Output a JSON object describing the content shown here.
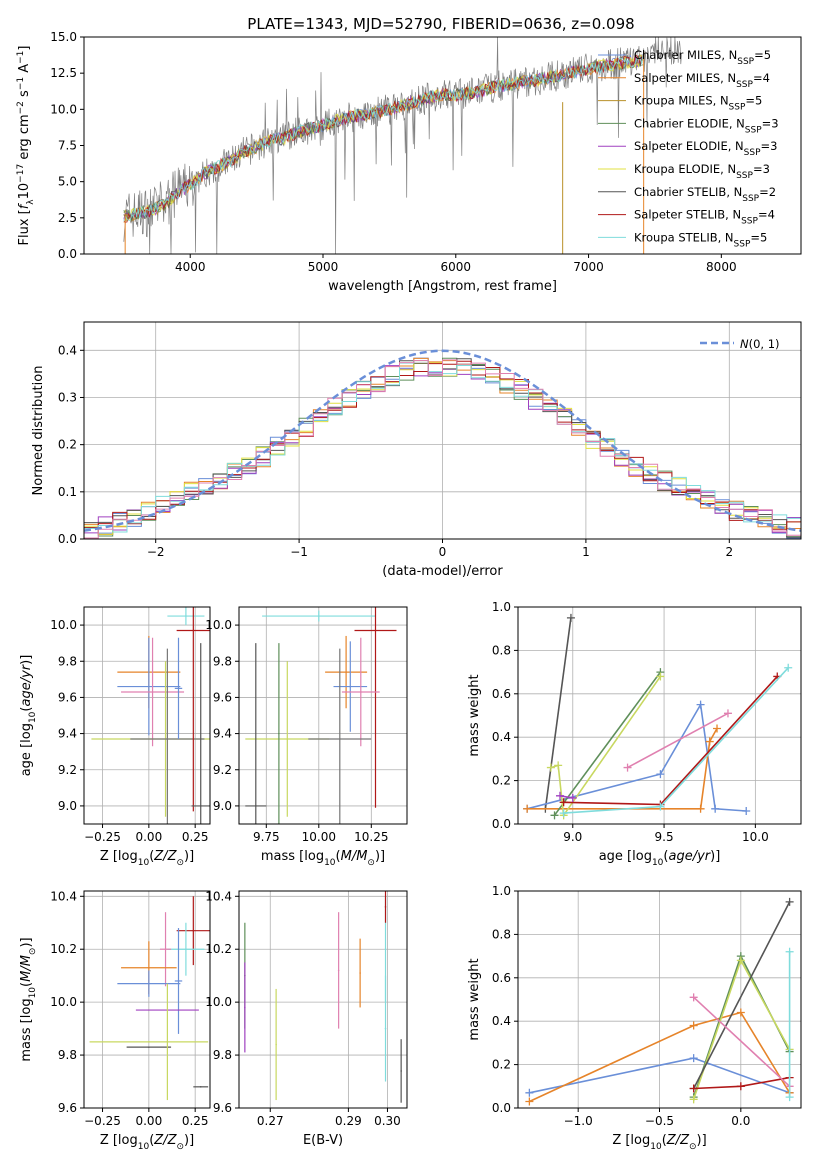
{
  "title": "PLATE=1343, MJD=52790, FIBERID=0636, z=0.098",
  "colors": {
    "miles_chabrier": "#6a8fd8",
    "miles_salpeter": "#e6842a",
    "miles_kroupa": "#b8902a",
    "elodie_chabrier": "#5f8f5a",
    "elodie_salpeter": "#a040c0",
    "elodie_kroupa": "#e0e040",
    "stelib_chabrier": "#555555",
    "stelib_salpeter": "#b01818",
    "stelib_kroupa": "#7fdcdc",
    "data": "#808080",
    "extra_pink": "#e080b0",
    "extra_olive": "#c8d860"
  },
  "chart_data": [
    {
      "id": "spectrum",
      "type": "line",
      "title": "PLATE=1343, MJD=52790, FIBERID=0636, z=0.098",
      "xlabel": "wavelength [Angstrom, rest frame]",
      "ylabel": "Flux [f_λ 10^-17 erg cm^-2 s^-1 A^-1]",
      "xlim": [
        3200,
        8600
      ],
      "ylim": [
        0,
        15
      ],
      "xticks": [
        4000,
        5000,
        6000,
        7000,
        8000
      ],
      "yticks": [
        0.0,
        2.5,
        5.0,
        7.5,
        10.0,
        12.5,
        15.0
      ],
      "legend_position": "top-right",
      "legend": [
        {
          "label": "Chabrier MILES, N_SSP=5",
          "color": "#6a8fd8"
        },
        {
          "label": "Salpeter MILES, N_SSP=4",
          "color": "#e6842a"
        },
        {
          "label": "Kroupa MILES, N_SSP=5",
          "color": "#b8902a"
        },
        {
          "label": "Chabrier ELODIE, N_SSP=3",
          "color": "#5f8f5a"
        },
        {
          "label": "Salpeter ELODIE, N_SSP=3",
          "color": "#a040c0"
        },
        {
          "label": "Kroupa ELODIE, N_SSP=3",
          "color": "#e0e040"
        },
        {
          "label": "Chabrier STELIB, N_SSP=2",
          "color": "#555555"
        },
        {
          "label": "Salpeter STELIB, N_SSP=4",
          "color": "#b01818"
        },
        {
          "label": "Kroupa STELIB, N_SSP=5",
          "color": "#7fdcdc"
        }
      ],
      "model_trend": [
        [
          3500,
          2.6
        ],
        [
          3600,
          2.8
        ],
        [
          3700,
          3.0
        ],
        [
          3800,
          3.4
        ],
        [
          3900,
          4.2
        ],
        [
          4000,
          4.8
        ],
        [
          4100,
          5.5
        ],
        [
          4200,
          6.0
        ],
        [
          4300,
          6.4
        ],
        [
          4400,
          7.0
        ],
        [
          4500,
          7.4
        ],
        [
          4600,
          7.8
        ],
        [
          4700,
          8.0
        ],
        [
          4800,
          8.4
        ],
        [
          4900,
          8.7
        ],
        [
          5000,
          8.9
        ],
        [
          5100,
          9.2
        ],
        [
          5200,
          9.5
        ],
        [
          5300,
          9.6
        ],
        [
          5400,
          9.8
        ],
        [
          5500,
          10.0
        ],
        [
          5600,
          10.3
        ],
        [
          5700,
          10.5
        ],
        [
          5800,
          10.8
        ],
        [
          5900,
          11.0
        ],
        [
          6000,
          11.0
        ],
        [
          6100,
          11.1
        ],
        [
          6200,
          11.3
        ],
        [
          6300,
          11.6
        ],
        [
          6400,
          11.7
        ],
        [
          6500,
          11.9
        ],
        [
          6600,
          12.0
        ],
        [
          6700,
          12.2
        ],
        [
          6800,
          12.4
        ],
        [
          6900,
          12.6
        ],
        [
          7000,
          12.8
        ],
        [
          7100,
          13.0
        ],
        [
          7200,
          13.1
        ],
        [
          7300,
          13.3
        ],
        [
          7400,
          13.4
        ],
        [
          7500,
          13.7
        ],
        [
          7600,
          14.0
        ],
        [
          7700,
          14.2
        ]
      ]
    },
    {
      "id": "residuals",
      "type": "line",
      "xlabel": "(data-model)/error",
      "ylabel": "Normed distribution",
      "xlim": [
        -2.5,
        2.5
      ],
      "ylim": [
        0,
        0.46
      ],
      "xticks": [
        -2,
        -1,
        0,
        1,
        2
      ],
      "yticks": [
        0.0,
        0.1,
        0.2,
        0.3,
        0.4
      ],
      "grid": true,
      "legend_position": "top-right",
      "legend": [
        {
          "label": "N(0,1)",
          "color": "#6a8fd8",
          "style": "dashed"
        }
      ],
      "normal_curve": {
        "mean": 0,
        "sigma": 1
      }
    },
    {
      "id": "age_vs_Z",
      "type": "scatter",
      "xlabel": "Z [log10(Z/Z⊙)]",
      "ylabel": "age [log10(age/yr)]",
      "xlim": [
        -0.35,
        0.33
      ],
      "ylim": [
        8.9,
        10.1
      ],
      "xticks": [
        "-0.25",
        "0.00",
        "0.25"
      ],
      "yticks": [
        "9.0",
        "9.2",
        "9.4",
        "9.6",
        "9.8",
        "10.0"
      ],
      "grid": true,
      "points": [
        {
          "x": 0.0,
          "y": 9.74,
          "xerr": 0.17,
          "yerr": 0.2,
          "color": "#e6842a"
        },
        {
          "x": 0.0,
          "y": 9.66,
          "xerr": 0.17,
          "yerr": 0.27,
          "color": "#6a8fd8"
        },
        {
          "x": 0.02,
          "y": 9.63,
          "xerr": 0.17,
          "yerr": 0.3,
          "color": "#e080b0"
        },
        {
          "x": 0.09,
          "y": 9.37,
          "xerr": 0.4,
          "yerr": 0.43,
          "color": "#c8d860"
        },
        {
          "x": 0.1,
          "y": 9.37,
          "xerr": 0.2,
          "yerr": 0.5,
          "color": "#777777"
        },
        {
          "x": 0.2,
          "y": 10.05,
          "xerr": 0.1,
          "yerr": 0.05,
          "color": "#7fdcdc"
        },
        {
          "x": 0.24,
          "y": 9.97,
          "xerr": 0.09,
          "yerr": 1.0,
          "color": "#b01818"
        },
        {
          "x": 0.16,
          "y": 9.65,
          "xerr": 0.02,
          "yerr": 0.28,
          "color": "#6a8fd8"
        },
        {
          "x": 0.28,
          "y": 9.0,
          "xerr": 0.05,
          "yerr": 0.9,
          "color": "#555555"
        }
      ]
    },
    {
      "id": "age_vs_mass",
      "type": "scatter",
      "xlabel": "mass [log10(M/M⊙)]",
      "ylabel": "",
      "xlim": [
        9.62,
        10.42
      ],
      "ylim": [
        8.9,
        10.1
      ],
      "xticks": [
        "9.75",
        "10.00",
        "10.25"
      ],
      "yticks": [
        "9.0",
        "9.2",
        "9.4",
        "9.6",
        "9.8",
        "10.0"
      ],
      "grid": true,
      "points": [
        {
          "x": 10.0,
          "y": 10.05,
          "xerr": 0.27,
          "yerr": 0.03,
          "color": "#7fdcdc"
        },
        {
          "x": 10.27,
          "y": 9.97,
          "xerr": 0.1,
          "yerr": 0.98,
          "color": "#b01818"
        },
        {
          "x": 10.13,
          "y": 9.74,
          "xerr": 0.1,
          "yerr": 0.2,
          "color": "#e6842a"
        },
        {
          "x": 10.15,
          "y": 9.66,
          "xerr": 0.08,
          "yerr": 0.25,
          "color": "#6a8fd8"
        },
        {
          "x": 10.2,
          "y": 9.63,
          "xerr": 0.09,
          "yerr": 0.3,
          "color": "#e080b0"
        },
        {
          "x": 9.85,
          "y": 9.37,
          "xerr": 0.2,
          "yerr": 0.43,
          "color": "#c8d860"
        },
        {
          "x": 10.1,
          "y": 9.37,
          "xerr": 0.15,
          "yerr": 0.5,
          "color": "#777777"
        },
        {
          "x": 9.7,
          "y": 9.0,
          "xerr": 0.05,
          "yerr": 0.9,
          "color": "#555555"
        },
        {
          "x": 9.81,
          "y": 9.4,
          "xerr": 0.0,
          "yerr": 0.5,
          "color": "#5f8f5a"
        }
      ]
    },
    {
      "id": "weight_vs_age",
      "type": "line",
      "xlabel": "age [log10(age/yr)]",
      "ylabel": "mass weight",
      "xlim": [
        8.7,
        10.25
      ],
      "ylim": [
        0,
        1
      ],
      "xticks": [
        "9.0",
        "9.5",
        "10.0"
      ],
      "yticks": [
        "0.0",
        "0.2",
        "0.4",
        "0.6",
        "0.8",
        "1.0"
      ],
      "grid": true,
      "series": [
        {
          "color": "#555555",
          "x": [
            8.85,
            8.99
          ],
          "y": [
            0.07,
            0.95
          ]
        },
        {
          "color": "#6a8fd8",
          "x": [
            8.75,
            9.48,
            9.7,
            9.78,
            9.95
          ],
          "y": [
            0.07,
            0.23,
            0.55,
            0.07,
            0.06
          ]
        },
        {
          "color": "#e6842a",
          "x": [
            8.75,
            9.7,
            9.75,
            9.79
          ],
          "y": [
            0.07,
            0.07,
            0.38,
            0.44
          ]
        },
        {
          "color": "#5f8f5a",
          "x": [
            8.9,
            9.48
          ],
          "y": [
            0.04,
            0.7
          ]
        },
        {
          "color": "#c8d860",
          "x": [
            8.88,
            8.92,
            8.95,
            9.48
          ],
          "y": [
            0.26,
            0.27,
            0.04,
            0.68
          ]
        },
        {
          "color": "#b01818",
          "x": [
            8.95,
            9.48,
            10.12
          ],
          "y": [
            0.1,
            0.09,
            0.68
          ]
        },
        {
          "color": "#7fdcdc",
          "x": [
            8.95,
            9.48,
            10.18
          ],
          "y": [
            0.05,
            0.08,
            0.72
          ]
        },
        {
          "color": "#e080b0",
          "x": [
            9.3,
            9.85
          ],
          "y": [
            0.26,
            0.51
          ]
        },
        {
          "color": "#a040c0",
          "x": [
            8.93,
            9.0
          ],
          "y": [
            0.13,
            0.12
          ]
        }
      ]
    },
    {
      "id": "mass_vs_Z",
      "type": "scatter",
      "xlabel": "Z [log10(Z/Z⊙)]",
      "ylabel": "mass [log10(M/M⊙)]",
      "xlim": [
        -0.35,
        0.33
      ],
      "ylim": [
        9.6,
        10.42
      ],
      "xticks": [
        "-0.25",
        "0.00",
        "0.25"
      ],
      "yticks": [
        "9.6",
        "9.8",
        "10.0",
        "10.2",
        "10.4"
      ],
      "grid": true,
      "points": [
        {
          "x": 0.24,
          "y": 10.27,
          "xerr": 0.09,
          "yerr": 0.13,
          "color": "#b01818"
        },
        {
          "x": 0.2,
          "y": 10.2,
          "xerr": 0.1,
          "yerr": 0.1,
          "color": "#7fdcdc"
        },
        {
          "x": 0.09,
          "y": 10.2,
          "xerr": 0.03,
          "yerr": 0.14,
          "color": "#e080b0"
        },
        {
          "x": 0.0,
          "y": 10.13,
          "xerr": 0.15,
          "yerr": 0.1,
          "color": "#e6842a"
        },
        {
          "x": 0.0,
          "y": 10.07,
          "xerr": 0.17,
          "yerr": 0.05,
          "color": "#6a8fd8"
        },
        {
          "x": 0.16,
          "y": 10.08,
          "xerr": 0.02,
          "yerr": 0.2,
          "color": "#6a8fd8"
        },
        {
          "x": 0.1,
          "y": 9.97,
          "xerr": 0.17,
          "yerr": 0.0,
          "color": "#a040c0"
        },
        {
          "x": 0.0,
          "y": 9.85,
          "xerr": 0.32,
          "yerr": 0.0,
          "color": "#c8d860"
        },
        {
          "x": 0.0,
          "y": 9.83,
          "xerr": 0.12,
          "yerr": 0.0,
          "color": "#555555"
        },
        {
          "x": 0.1,
          "y": 9.85,
          "xerr": 0.0,
          "yerr": 0.22,
          "color": "#c8d860"
        },
        {
          "x": 0.28,
          "y": 9.68,
          "xerr": 0.04,
          "yerr": 0.0,
          "color": "#555555"
        }
      ]
    },
    {
      "id": "mass_vs_EBV",
      "type": "scatter",
      "xlabel": "E(B-V)",
      "ylabel": "",
      "xlim": [
        0.262,
        0.305
      ],
      "ylim": [
        9.6,
        10.42
      ],
      "xticks": [
        "0.27",
        "0.29",
        "0.30"
      ],
      "yticks": [
        "9.6",
        "9.8",
        "10.0",
        "10.2",
        "10.4"
      ],
      "grid": true,
      "points": [
        {
          "x": 0.2635,
          "y": 10.1,
          "yerr": 0.2,
          "color": "#5f8f5a"
        },
        {
          "x": 0.2635,
          "y": 9.98,
          "yerr": 0.17,
          "color": "#a040c0"
        },
        {
          "x": 0.2715,
          "y": 9.84,
          "yerr": 0.21,
          "color": "#c8d860"
        },
        {
          "x": 0.2875,
          "y": 10.12,
          "yerr": 0.22,
          "color": "#e080b0"
        },
        {
          "x": 0.293,
          "y": 10.11,
          "yerr": 0.13,
          "color": "#e6842a"
        },
        {
          "x": 0.2995,
          "y": 10.2,
          "yerr": 0.2,
          "color": "#7fdcdc"
        },
        {
          "x": 0.2995,
          "y": 10.36,
          "yerr": 0.06,
          "color": "#b01818"
        },
        {
          "x": 0.2995,
          "y": 9.9,
          "yerr": 0.2,
          "color": "#7fdcdc"
        },
        {
          "x": 0.3035,
          "y": 9.74,
          "yerr": 0.12,
          "color": "#555555"
        }
      ]
    },
    {
      "id": "weight_vs_Z",
      "type": "line",
      "xlabel": "Z [log10(Z/Z⊙)]",
      "ylabel": "mass weight",
      "xlim": [
        -1.37,
        0.37
      ],
      "ylim": [
        0,
        1
      ],
      "xticks": [
        "-1.0",
        "-0.5",
        "0.0"
      ],
      "yticks": [
        "0.0",
        "0.2",
        "0.4",
        "0.6",
        "0.8",
        "1.0"
      ],
      "grid": true,
      "series": [
        {
          "color": "#6a8fd8",
          "x": [
            -1.3,
            -0.29,
            0.3
          ],
          "y": [
            0.07,
            0.23,
            0.07
          ]
        },
        {
          "color": "#e6842a",
          "x": [
            -1.3,
            -0.29,
            0.0,
            0.3
          ],
          "y": [
            0.03,
            0.38,
            0.44,
            0.07
          ]
        },
        {
          "color": "#5f8f5a",
          "x": [
            -0.29,
            0.0,
            0.3
          ],
          "y": [
            0.05,
            0.7,
            0.26
          ]
        },
        {
          "color": "#c8d860",
          "x": [
            -0.29,
            0.0,
            0.3
          ],
          "y": [
            0.04,
            0.68,
            0.27
          ]
        },
        {
          "color": "#555555",
          "x": [
            -0.29,
            0.3
          ],
          "y": [
            0.09,
            0.95
          ]
        },
        {
          "color": "#b01818",
          "x": [
            -0.29,
            0.0,
            0.3
          ],
          "y": [
            0.09,
            0.1,
            0.14
          ]
        },
        {
          "color": "#e080b0",
          "x": [
            -0.29,
            0.3
          ],
          "y": [
            0.51,
            0.1
          ]
        },
        {
          "color": "#7fdcdc",
          "x": [
            0.3,
            0.3
          ],
          "y": [
            0.05,
            0.72
          ]
        }
      ]
    }
  ]
}
